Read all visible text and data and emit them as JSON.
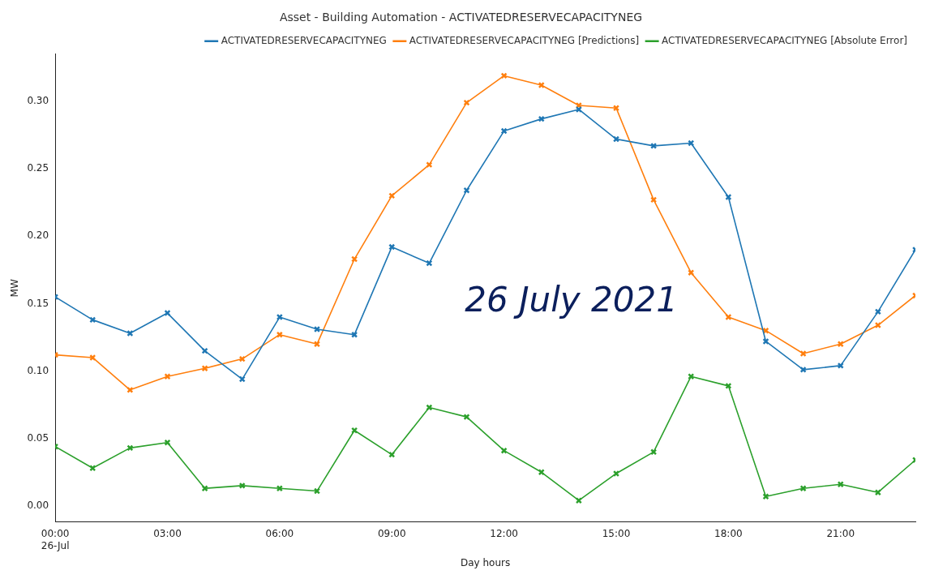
{
  "chart_data": {
    "type": "line",
    "title": "Asset - Building Automation - ACTIVATEDRESERVECAPACITYNEG",
    "xlabel": "Day hours",
    "ylabel": "MW",
    "x": [
      0,
      1,
      2,
      3,
      4,
      5,
      6,
      7,
      8,
      9,
      10,
      11,
      12,
      13,
      14,
      15,
      16,
      17,
      18,
      19,
      20,
      21,
      22,
      23
    ],
    "series": [
      {
        "name": "ACTIVATEDRESERVECAPACITYNEG",
        "color": "#1f77b4",
        "values": [
          0.155,
          0.138,
          0.128,
          0.143,
          0.115,
          0.094,
          0.14,
          0.131,
          0.127,
          0.192,
          0.18,
          0.234,
          0.278,
          0.287,
          0.294,
          0.272,
          0.267,
          0.269,
          0.229,
          0.122,
          0.101,
          0.104,
          0.144,
          0.19
        ]
      },
      {
        "name": "ACTIVATEDRESERVECAPACITYNEG [Predictions]",
        "color": "#ff7f0e",
        "values": [
          0.112,
          0.11,
          0.086,
          0.096,
          0.102,
          0.109,
          0.127,
          0.12,
          0.183,
          0.23,
          0.253,
          0.299,
          0.319,
          0.312,
          0.297,
          0.295,
          0.227,
          0.173,
          0.14,
          0.13,
          0.113,
          0.12,
          0.134,
          0.156
        ]
      },
      {
        "name": "ACTIVATEDRESERVECAPACITYNEG [Absolute Error]",
        "color": "#2ca02c",
        "values": [
          0.044,
          0.028,
          0.043,
          0.047,
          0.013,
          0.015,
          0.013,
          0.011,
          0.056,
          0.038,
          0.073,
          0.066,
          0.041,
          0.025,
          0.004,
          0.024,
          0.04,
          0.096,
          0.089,
          0.007,
          0.013,
          0.016,
          0.01,
          0.034
        ]
      }
    ],
    "xlim": [
      0,
      23
    ],
    "xticks": [
      {
        "value": 0,
        "label": "00:00\n26-Jul"
      },
      {
        "value": 3,
        "label": "03:00"
      },
      {
        "value": 6,
        "label": "06:00"
      },
      {
        "value": 9,
        "label": "09:00"
      },
      {
        "value": 12,
        "label": "12:00"
      },
      {
        "value": 15,
        "label": "15:00"
      },
      {
        "value": 18,
        "label": "18:00"
      },
      {
        "value": 21,
        "label": "21:00"
      }
    ],
    "ylim": [
      -0.012,
      0.335
    ],
    "yticks": [
      {
        "value": 0,
        "label": "0.00"
      },
      {
        "value": 0.05,
        "label": "0.05"
      },
      {
        "value": 0.1,
        "label": "0.10"
      },
      {
        "value": 0.15,
        "label": "0.15"
      },
      {
        "value": 0.2,
        "label": "0.20"
      },
      {
        "value": 0.25,
        "label": "0.25"
      },
      {
        "value": 0.3,
        "label": "0.30"
      }
    ],
    "annotations": [
      "26 July 2021"
    ],
    "legend": "top right",
    "grid": false,
    "marker": "cross",
    "line_style": "solid"
  }
}
